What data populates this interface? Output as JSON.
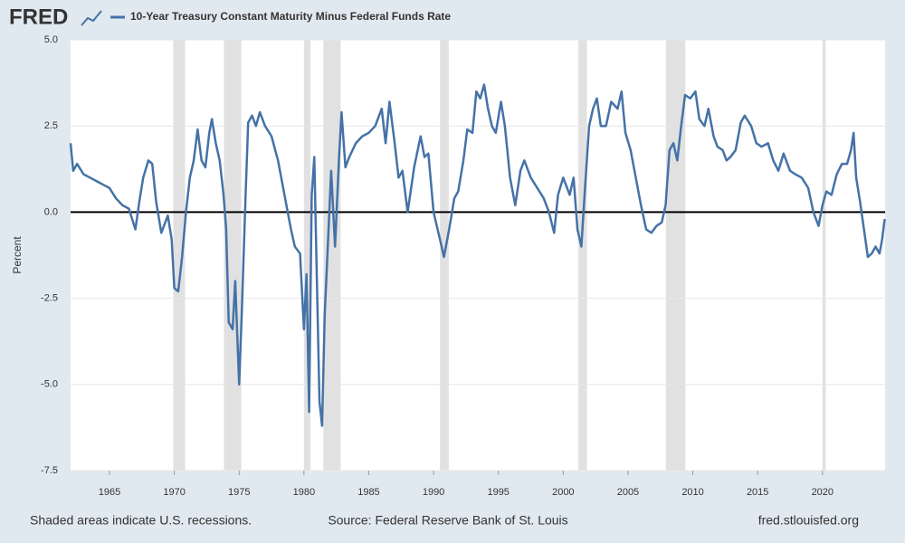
{
  "logo": "FRED",
  "footer": {
    "left": "Shaded areas indicate U.S. recessions.",
    "center": "Source: Federal Reserve Bank of St. Louis",
    "right": "fred.stlouisfed.org"
  },
  "chart_data": {
    "type": "line",
    "y_label": "Percent",
    "xlim": [
      1962,
      2024.83
    ],
    "ylim": [
      -7.5,
      5
    ],
    "xticks": [
      1965,
      1970,
      1975,
      1980,
      1985,
      1990,
      1995,
      2000,
      2005,
      2010,
      2015,
      2020
    ],
    "yticks": [
      {
        "value": -7.5,
        "label": "-7.5"
      },
      {
        "value": -5,
        "label": "-5.0"
      },
      {
        "value": -2.5,
        "label": "-2.5"
      },
      {
        "value": 0,
        "label": "0.0"
      },
      {
        "value": 2.5,
        "label": "2.5"
      },
      {
        "value": 5,
        "label": "5.0"
      }
    ],
    "grid": true,
    "zero_line": true,
    "recession_color": "#e1e1e1",
    "recessions": [
      [
        1969.92,
        1970.83
      ],
      [
        1973.83,
        1975.17
      ],
      [
        1980.0,
        1980.5
      ],
      [
        1981.5,
        1982.83
      ],
      [
        1990.5,
        1991.17
      ],
      [
        2001.17,
        2001.83
      ],
      [
        2007.92,
        2009.42
      ],
      [
        2020.0,
        2020.25
      ]
    ],
    "x": [
      1962.0,
      1962.2,
      1962.5,
      1963,
      1963.5,
      1964,
      1964.5,
      1965,
      1965.5,
      1966,
      1966.5,
      1967,
      1967.3,
      1967.6,
      1968,
      1968.3,
      1968.6,
      1969,
      1969.5,
      1969.8,
      1970,
      1970.3,
      1970.6,
      1970.9,
      1971.2,
      1971.5,
      1971.8,
      1972.1,
      1972.4,
      1972.7,
      1972.9,
      1973.2,
      1973.5,
      1973.8,
      1974.0,
      1974.2,
      1974.5,
      1974.7,
      1975.0,
      1975.2,
      1975.5,
      1975.7,
      1976,
      1976.3,
      1976.6,
      1977,
      1977.5,
      1978,
      1978.5,
      1979,
      1979.3,
      1979.7,
      1980.0,
      1980.2,
      1980.4,
      1980.6,
      1980.8,
      1981.0,
      1981.2,
      1981.4,
      1981.6,
      1981.9,
      1982.1,
      1982.4,
      1982.7,
      1982.9,
      1983.2,
      1983.5,
      1984,
      1984.5,
      1985,
      1985.5,
      1986,
      1986.3,
      1986.6,
      1987,
      1987.3,
      1987.6,
      1988,
      1988.5,
      1989,
      1989.3,
      1989.6,
      1990,
      1990.5,
      1990.8,
      1991.2,
      1991.6,
      1991.9,
      1992.3,
      1992.6,
      1993,
      1993.3,
      1993.6,
      1993.9,
      1994.2,
      1994.5,
      1994.8,
      1995.2,
      1995.5,
      1995.9,
      1996.3,
      1996.7,
      1997,
      1997.5,
      1998,
      1998.5,
      1998.9,
      1999.3,
      1999.6,
      2000,
      2000.5,
      2000.8,
      2001.1,
      2001.4,
      2001.7,
      2002,
      2002.3,
      2002.6,
      2002.9,
      2003.3,
      2003.7,
      2004.2,
      2004.5,
      2004.8,
      2005.2,
      2005.6,
      2006,
      2006.4,
      2006.8,
      2007.2,
      2007.6,
      2007.9,
      2008.2,
      2008.5,
      2008.8,
      2009.1,
      2009.4,
      2009.8,
      2010.2,
      2010.5,
      2010.9,
      2011.2,
      2011.6,
      2011.9,
      2012.3,
      2012.6,
      2012.9,
      2013.3,
      2013.7,
      2014,
      2014.5,
      2014.9,
      2015.3,
      2015.8,
      2016.2,
      2016.6,
      2017,
      2017.5,
      2017.9,
      2018.4,
      2018.9,
      2019.3,
      2019.7,
      2020.0,
      2020.3,
      2020.7,
      2021.1,
      2021.5,
      2021.9,
      2022.2,
      2022.4,
      2022.6,
      2022.9,
      2023.2,
      2023.5,
      2023.8,
      2024.1,
      2024.4,
      2024.6,
      2024.8
    ],
    "series": [
      {
        "name": "10-Year Treasury Constant Maturity Minus Federal Funds Rate",
        "color": "#4572a7",
        "values": [
          2.0,
          1.2,
          1.4,
          1.1,
          1.0,
          0.9,
          0.8,
          0.7,
          0.4,
          0.2,
          0.1,
          -0.5,
          0.3,
          1.0,
          1.5,
          1.4,
          0.3,
          -0.6,
          -0.1,
          -0.8,
          -2.2,
          -2.3,
          -1.3,
          0.0,
          1.0,
          1.5,
          2.4,
          1.5,
          1.3,
          2.3,
          2.7,
          2.0,
          1.5,
          0.5,
          -0.5,
          -3.2,
          -3.4,
          -2.0,
          -5.0,
          -3.0,
          0.5,
          2.6,
          2.8,
          2.5,
          2.9,
          2.5,
          2.2,
          1.5,
          0.5,
          -0.5,
          -1.0,
          -1.2,
          -3.4,
          -1.8,
          -5.8,
          0.5,
          1.6,
          -2.0,
          -5.5,
          -6.2,
          -3.0,
          -0.5,
          1.2,
          -1.0,
          1.5,
          2.9,
          1.3,
          1.6,
          2.0,
          2.2,
          2.3,
          2.5,
          3.0,
          2.0,
          3.2,
          2.0,
          1.0,
          1.2,
          0.0,
          1.3,
          2.2,
          1.6,
          1.7,
          0.0,
          -0.8,
          -1.3,
          -0.5,
          0.4,
          0.6,
          1.5,
          2.4,
          2.3,
          3.5,
          3.3,
          3.7,
          3.0,
          2.5,
          2.3,
          3.2,
          2.5,
          1.0,
          0.2,
          1.2,
          1.5,
          1.0,
          0.7,
          0.4,
          0.0,
          -0.6,
          0.5,
          1.0,
          0.5,
          1.0,
          -0.5,
          -1.0,
          0.8,
          2.5,
          3.0,
          3.3,
          2.5,
          2.5,
          3.2,
          3.0,
          3.5,
          2.3,
          1.8,
          1.0,
          0.2,
          -0.5,
          -0.6,
          -0.4,
          -0.3,
          0.2,
          1.8,
          2.0,
          1.5,
          2.5,
          3.4,
          3.3,
          3.5,
          2.7,
          2.5,
          3.0,
          2.2,
          1.9,
          1.8,
          1.5,
          1.6,
          1.8,
          2.6,
          2.8,
          2.5,
          2.0,
          1.9,
          2.0,
          1.5,
          1.2,
          1.7,
          1.2,
          1.1,
          1.0,
          0.7,
          0.0,
          -0.4,
          0.2,
          0.6,
          0.5,
          1.1,
          1.4,
          1.4,
          1.8,
          2.3,
          1.0,
          0.3,
          -0.5,
          -1.3,
          -1.2,
          -1.0,
          -1.2,
          -0.8,
          -0.2
        ]
      }
    ]
  }
}
